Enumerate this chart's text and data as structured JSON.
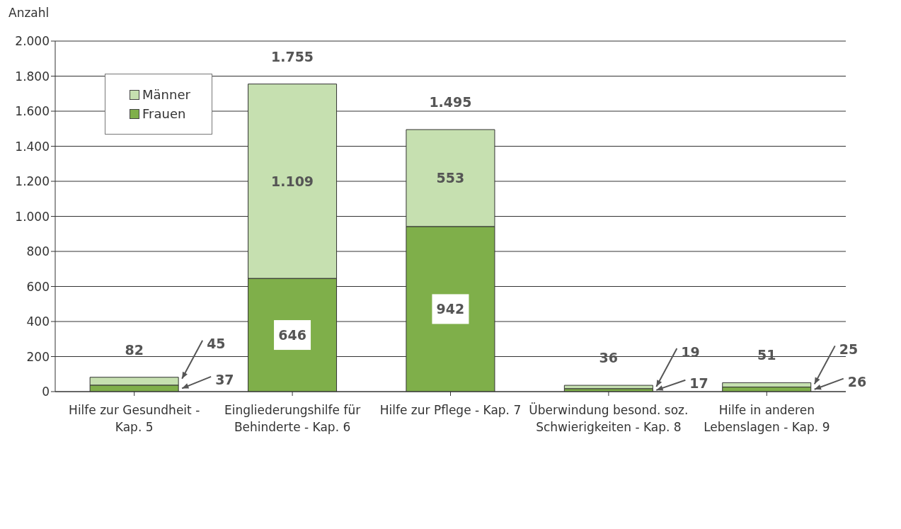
{
  "chart_data": {
    "type": "bar",
    "stacked": true,
    "ylabel": "Anzahl",
    "categories": [
      "Hilfe zur Gesundheit - Kap. 5",
      "Eingliederungshilfe für Behinderte - Kap. 6",
      "Hilfe zur Pflege - Kap. 7",
      "Überwindung besond. soz. Schwierigkeiten - Kap. 8",
      "Hilfe in anderen Lebenslagen - Kap. 9"
    ],
    "series": [
      {
        "name": "Frauen",
        "color": "#7faf4a",
        "values": [
          37,
          646,
          942,
          17,
          26
        ],
        "value_labels": [
          "37",
          "646",
          "942",
          "17",
          "26"
        ]
      },
      {
        "name": "Männer",
        "color": "#c6e0b0",
        "values": [
          45,
          1109,
          553,
          19,
          25
        ],
        "value_labels": [
          "45",
          "1.109",
          "553",
          "19",
          "25"
        ]
      }
    ],
    "totals": [
      "82",
      "1.755",
      "1.495",
      "36",
      "51"
    ],
    "ylim": [
      0,
      2000
    ],
    "yticks": [
      {
        "value": 0,
        "label": "0"
      },
      {
        "value": 200,
        "label": "200"
      },
      {
        "value": 400,
        "label": "400"
      },
      {
        "value": 600,
        "label": "600"
      },
      {
        "value": 800,
        "label": "800"
      },
      {
        "value": 1000,
        "label": "1.000"
      },
      {
        "value": 1200,
        "label": "1.200"
      },
      {
        "value": 1400,
        "label": "1.400"
      },
      {
        "value": 1600,
        "label": "1.600"
      },
      {
        "value": 1800,
        "label": "1.800"
      },
      {
        "value": 2000,
        "label": "2.000"
      }
    ],
    "grid": "y",
    "legend": "top left"
  }
}
